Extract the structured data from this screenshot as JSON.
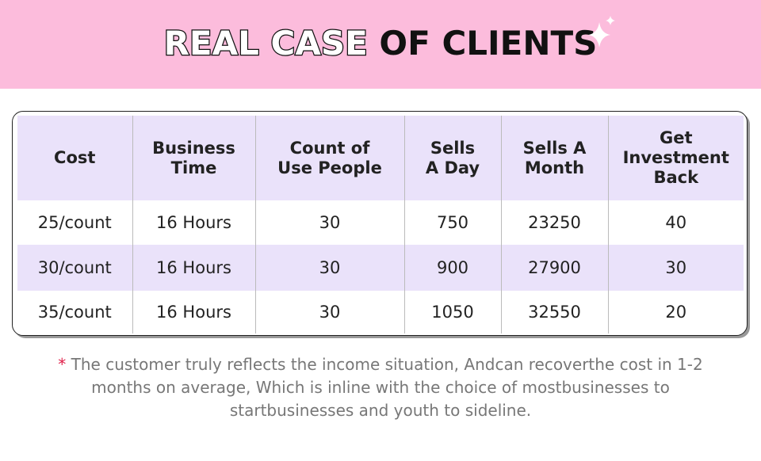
{
  "header": {
    "title_outlined": "REAL CASE",
    "title_plain": "OF CLIENTS"
  },
  "table": {
    "columns": [
      "Cost",
      "Business\nTime",
      "Count of\nUse People",
      "Sells\nA Day",
      "Sells A\nMonth",
      "Get\nInvestment\nBack"
    ],
    "rows": [
      [
        "25/count",
        "16 Hours",
        "30",
        "750",
        "23250",
        "40"
      ],
      [
        "30/count",
        "16 Hours",
        "30",
        "900",
        "27900",
        "30"
      ],
      [
        "35/count",
        "16 Hours",
        "30",
        "1050",
        "32550",
        "20"
      ]
    ]
  },
  "note": {
    "marker": "*",
    "text": "The customer truly reflects the income situation, Andcan recoverthe cost in 1-2 months on average, Which is inline with the choice of mostbusinesses to startbusinesses and youth to sideline."
  }
}
